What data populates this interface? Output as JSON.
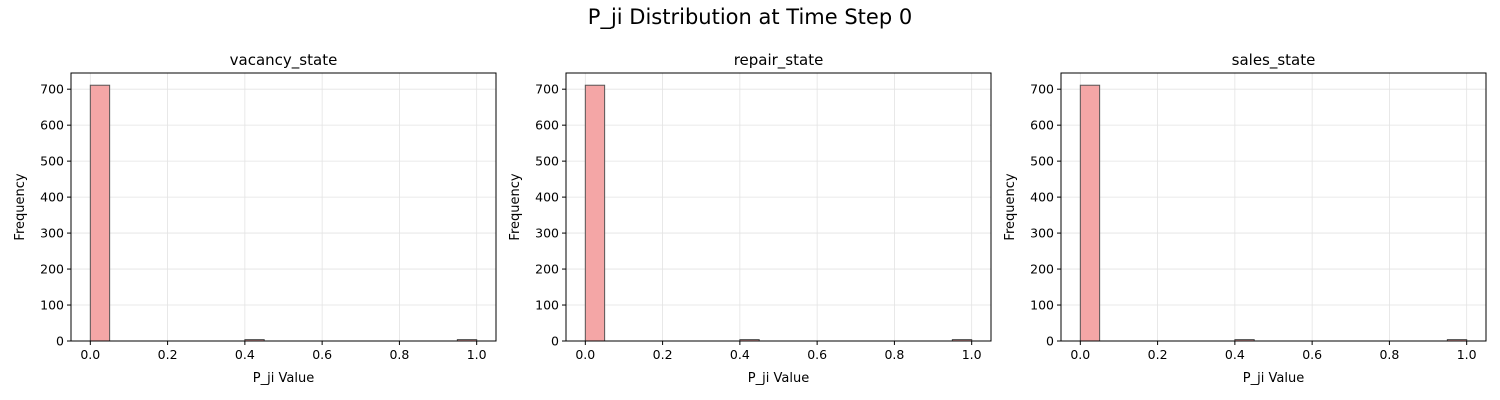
{
  "figure": {
    "title": "P_ji Distribution at Time Step 0"
  },
  "colors": {
    "bar_fill": "#f4a6a6",
    "bar_edge": "#555555",
    "grid": "#e3e3e3",
    "axis": "#000000"
  },
  "chart_data": [
    {
      "type": "bar",
      "title": "vacancy_state",
      "xlabel": "P_ji Value",
      "ylabel": "Frequency",
      "xlim": [
        -0.05,
        1.05
      ],
      "ylim": [
        0,
        745
      ],
      "xticks": [
        0.0,
        0.2,
        0.4,
        0.6,
        0.8,
        1.0
      ],
      "xtick_labels": [
        "0.0",
        "0.2",
        "0.4",
        "0.6",
        "0.8",
        "1.0"
      ],
      "yticks": [
        0,
        100,
        200,
        300,
        400,
        500,
        600,
        700
      ],
      "ytick_labels": [
        "0",
        "100",
        "200",
        "300",
        "400",
        "500",
        "600",
        "700"
      ],
      "grid": true,
      "bins": [
        {
          "x0": 0.0,
          "x1": 0.05,
          "count": 711
        },
        {
          "x0": 0.4,
          "x1": 0.45,
          "count": 4
        },
        {
          "x0": 0.95,
          "x1": 1.0,
          "count": 4
        }
      ]
    },
    {
      "type": "bar",
      "title": "repair_state",
      "xlabel": "P_ji Value",
      "ylabel": "Frequency",
      "xlim": [
        -0.05,
        1.05
      ],
      "ylim": [
        0,
        745
      ],
      "xticks": [
        0.0,
        0.2,
        0.4,
        0.6,
        0.8,
        1.0
      ],
      "xtick_labels": [
        "0.0",
        "0.2",
        "0.4",
        "0.6",
        "0.8",
        "1.0"
      ],
      "yticks": [
        0,
        100,
        200,
        300,
        400,
        500,
        600,
        700
      ],
      "ytick_labels": [
        "0",
        "100",
        "200",
        "300",
        "400",
        "500",
        "600",
        "700"
      ],
      "grid": true,
      "bins": [
        {
          "x0": 0.0,
          "x1": 0.05,
          "count": 711
        },
        {
          "x0": 0.4,
          "x1": 0.45,
          "count": 4
        },
        {
          "x0": 0.95,
          "x1": 1.0,
          "count": 4
        }
      ]
    },
    {
      "type": "bar",
      "title": "sales_state",
      "xlabel": "P_ji Value",
      "ylabel": "Frequency",
      "xlim": [
        -0.05,
        1.05
      ],
      "ylim": [
        0,
        745
      ],
      "xticks": [
        0.0,
        0.2,
        0.4,
        0.6,
        0.8,
        1.0
      ],
      "xtick_labels": [
        "0.0",
        "0.2",
        "0.4",
        "0.6",
        "0.8",
        "1.0"
      ],
      "yticks": [
        0,
        100,
        200,
        300,
        400,
        500,
        600,
        700
      ],
      "ytick_labels": [
        "0",
        "100",
        "200",
        "300",
        "400",
        "500",
        "600",
        "700"
      ],
      "grid": true,
      "bins": [
        {
          "x0": 0.0,
          "x1": 0.05,
          "count": 711
        },
        {
          "x0": 0.4,
          "x1": 0.45,
          "count": 4
        },
        {
          "x0": 0.95,
          "x1": 1.0,
          "count": 4
        }
      ]
    }
  ]
}
